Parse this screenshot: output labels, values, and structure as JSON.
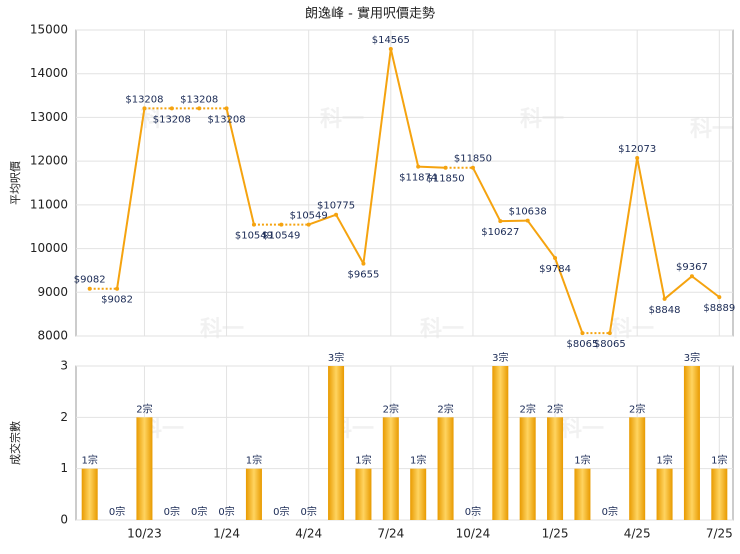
{
  "watermark": "科一",
  "chart_data": [
    {
      "type": "line",
      "title": "朗逸峰 - 實用呎價走勢",
      "ylabel": "平均呎價",
      "color": "#f5a30f",
      "values": [
        9082,
        9082,
        13208,
        13208,
        13208,
        13208,
        10549,
        10549,
        10549,
        10775,
        9655,
        14565,
        11874,
        11850,
        11850,
        10627,
        10638,
        9784,
        8065,
        8065,
        12073,
        8848,
        9367,
        8889
      ],
      "value_labels": [
        "$9082",
        "$9082",
        "$13208",
        "$13208",
        "$13208",
        "$13208",
        "$10549",
        "$10549",
        "$10549",
        "$10775",
        "$9655",
        "$14565",
        "$11874",
        "$11850",
        "$11850",
        "$10627",
        "$10638",
        "$9784",
        "$8065",
        "$8065",
        "$12073",
        "$8848",
        "$9367",
        "$8889"
      ],
      "ylim": [
        8000,
        15000
      ],
      "yticks": [
        8000,
        9000,
        10000,
        11000,
        12000,
        13000,
        14000,
        15000
      ],
      "grid": true
    },
    {
      "type": "bar",
      "ylabel": "成交宗數",
      "color": "#f2a900",
      "categories": [
        null,
        null,
        "10/23",
        null,
        null,
        "1/24",
        null,
        null,
        "4/24",
        null,
        null,
        "7/24",
        null,
        null,
        "10/24",
        null,
        null,
        "1/25",
        null,
        null,
        "4/25",
        null,
        null,
        "7/25"
      ],
      "values": [
        1,
        0,
        2,
        0,
        0,
        0,
        1,
        0,
        0,
        3,
        1,
        2,
        1,
        2,
        0,
        3,
        2,
        2,
        1,
        0,
        2,
        1,
        3,
        1
      ],
      "value_labels": [
        "1宗",
        "0宗",
        "2宗",
        "0宗",
        "0宗",
        "0宗",
        "1宗",
        "0宗",
        "0宗",
        "3宗",
        "1宗",
        "2宗",
        "1宗",
        "2宗",
        "0宗",
        "3宗",
        "2宗",
        "2宗",
        "1宗",
        "0宗",
        "2宗",
        "1宗",
        "3宗",
        "1宗"
      ],
      "ylim": [
        0,
        3
      ],
      "yticks": [
        0,
        1,
        2,
        3
      ],
      "grid": true
    }
  ]
}
